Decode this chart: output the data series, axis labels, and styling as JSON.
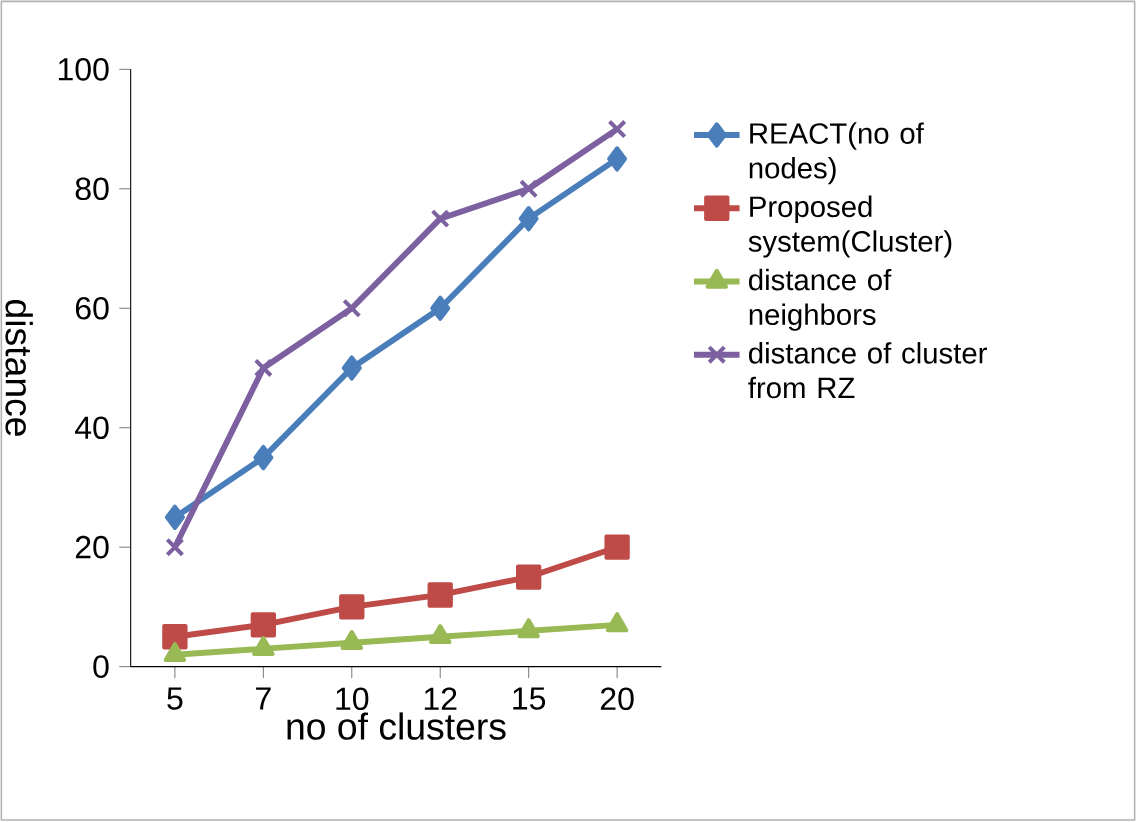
{
  "chart_data": {
    "type": "line",
    "xlabel": "no of clusters",
    "ylabel": "distance",
    "categories": [
      "5",
      "7",
      "10",
      "12",
      "15",
      "20"
    ],
    "series": [
      {
        "name": "REACT(no of nodes)",
        "color": "#4a7ebb",
        "marker": "diamond",
        "values": [
          25,
          35,
          50,
          60,
          75,
          85
        ]
      },
      {
        "name": "Proposed system(Cluster)",
        "color": "#be4b48",
        "marker": "square",
        "values": [
          5,
          7,
          10,
          12,
          15,
          20
        ]
      },
      {
        "name": "distance of neighbors",
        "color": "#98b954",
        "marker": "triangle",
        "values": [
          2,
          3,
          4,
          5,
          6,
          7
        ]
      },
      {
        "name": "distance of cluster from RZ",
        "color": "#7d60a0",
        "marker": "cross",
        "values": [
          20,
          50,
          60,
          75,
          80,
          90
        ]
      }
    ],
    "ylim": [
      0,
      100
    ],
    "yticks": [
      0,
      20,
      40,
      60,
      80,
      100
    ],
    "legend": "right",
    "grid": false
  }
}
